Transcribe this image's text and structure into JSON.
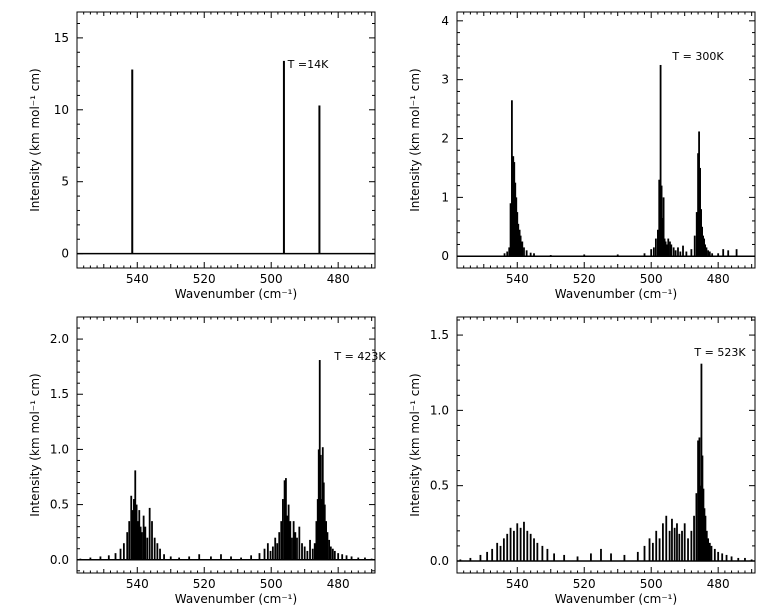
{
  "chart_data": [
    {
      "type": "bar",
      "panel": "top-left",
      "annotation": "T =14K",
      "xlabel": "Wavenumber (cm⁻¹)",
      "ylabel": "Intensity (km mol⁻¹ cm)",
      "xlim": [
        558,
        469
      ],
      "ylim": [
        -1.0,
        16.8
      ],
      "xticks": [
        540,
        520,
        500,
        480
      ],
      "yticks": [
        0,
        5,
        10,
        15
      ],
      "grid": false,
      "x": [
        541.5,
        496.2,
        485.6
      ],
      "values": [
        12.8,
        13.4,
        10.3
      ]
    },
    {
      "type": "bar",
      "panel": "top-right",
      "annotation": "T = 300K",
      "xlabel": "Wavenumber (cm⁻¹)",
      "ylabel": "Intensity (km mol⁻¹ cm)",
      "xlim": [
        558,
        469
      ],
      "ylim": [
        -0.2,
        4.15
      ],
      "xticks": [
        540,
        520,
        500,
        480
      ],
      "yticks": [
        0,
        1,
        2,
        3,
        4
      ],
      "grid": false,
      "x": [
        543.8,
        543.0,
        542.4,
        542.0,
        541.6,
        541.2,
        540.9,
        540.6,
        540.3,
        540.0,
        539.7,
        539.3,
        539.0,
        538.5,
        538.0,
        537.2,
        536.0,
        535.0,
        530.0,
        520.0,
        510.0,
        502.0,
        500.0,
        499.2,
        498.6,
        498.0,
        497.6,
        497.2,
        496.9,
        496.6,
        496.3,
        496.0,
        495.7,
        495.3,
        494.9,
        494.4,
        494.0,
        493.3,
        492.7,
        492.0,
        491.3,
        490.5,
        489.5,
        488.0,
        487.0,
        486.4,
        486.0,
        485.7,
        485.4,
        485.1,
        484.8,
        484.5,
        484.2,
        483.9,
        483.5,
        483.0,
        482.5,
        481.8,
        480.0,
        478.5,
        477.0,
        474.5
      ],
      "values": [
        0.05,
        0.08,
        0.15,
        0.9,
        2.65,
        1.7,
        1.6,
        1.25,
        1.0,
        0.75,
        0.55,
        0.45,
        0.35,
        0.25,
        0.15,
        0.1,
        0.06,
        0.05,
        0.02,
        0.03,
        0.03,
        0.05,
        0.12,
        0.15,
        0.3,
        0.45,
        1.3,
        3.25,
        1.2,
        0.65,
        1.0,
        0.3,
        0.25,
        0.2,
        0.3,
        0.25,
        0.2,
        0.15,
        0.1,
        0.15,
        0.08,
        0.18,
        0.08,
        0.12,
        0.35,
        0.75,
        1.75,
        2.12,
        1.5,
        0.8,
        0.5,
        0.35,
        0.3,
        0.2,
        0.15,
        0.1,
        0.08,
        0.05,
        0.05,
        0.12,
        0.1,
        0.12
      ]
    },
    {
      "type": "bar",
      "panel": "bottom-left",
      "annotation": "T = 423K",
      "xlabel": "Wavenumber (cm⁻¹)",
      "ylabel": "Intensity (km mol⁻¹ cm)",
      "xlim": [
        558,
        469
      ],
      "ylim": [
        -0.12,
        2.2
      ],
      "xticks": [
        540,
        520,
        500,
        480
      ],
      "yticks": [
        0.0,
        0.5,
        1.0,
        1.5,
        2.0
      ],
      "grid": false,
      "x": [
        557.0,
        554.0,
        551.0,
        548.5,
        546.5,
        545.0,
        544.0,
        543.0,
        542.4,
        541.8,
        541.4,
        541.0,
        540.6,
        540.2,
        539.8,
        539.4,
        539.0,
        538.6,
        538.1,
        537.6,
        537.0,
        536.3,
        535.6,
        534.8,
        534.0,
        533.2,
        532.0,
        530.0,
        527.5,
        524.5,
        521.5,
        518.0,
        515.0,
        512.0,
        509.0,
        506.0,
        503.5,
        502.0,
        501.0,
        500.2,
        499.5,
        498.8,
        498.2,
        497.6,
        497.0,
        496.5,
        496.0,
        495.6,
        495.2,
        494.8,
        494.3,
        493.8,
        493.3,
        492.8,
        492.3,
        491.6,
        490.8,
        490.0,
        489.2,
        488.4,
        487.6,
        487.0,
        486.5,
        486.1,
        485.8,
        485.5,
        485.2,
        484.9,
        484.6,
        484.3,
        484.0,
        483.6,
        483.2,
        482.7,
        482.2,
        481.6,
        481.0,
        480.0,
        478.8,
        477.5,
        476.0,
        474.0,
        472.0,
        470.0
      ],
      "values": [
        0.01,
        0.02,
        0.03,
        0.04,
        0.06,
        0.1,
        0.15,
        0.25,
        0.35,
        0.58,
        0.45,
        0.55,
        0.81,
        0.5,
        0.35,
        0.45,
        0.3,
        0.25,
        0.4,
        0.3,
        0.2,
        0.47,
        0.35,
        0.2,
        0.15,
        0.1,
        0.05,
        0.03,
        0.02,
        0.03,
        0.05,
        0.03,
        0.05,
        0.03,
        0.02,
        0.04,
        0.06,
        0.1,
        0.15,
        0.08,
        0.12,
        0.2,
        0.15,
        0.25,
        0.35,
        0.55,
        0.72,
        0.74,
        0.4,
        0.5,
        0.35,
        0.2,
        0.35,
        0.25,
        0.2,
        0.3,
        0.15,
        0.12,
        0.08,
        0.18,
        0.1,
        0.15,
        0.35,
        0.55,
        1.0,
        1.81,
        0.95,
        0.55,
        1.02,
        0.7,
        0.5,
        0.35,
        0.25,
        0.18,
        0.12,
        0.1,
        0.08,
        0.06,
        0.05,
        0.04,
        0.03,
        0.02,
        0.02,
        0.01
      ]
    },
    {
      "type": "bar",
      "panel": "bottom-right",
      "annotation": "T = 523K",
      "xlabel": "Wavenumber (cm⁻¹)",
      "ylabel": "Intensity (km mol⁻¹ cm)",
      "xlim": [
        558,
        469
      ],
      "ylim": [
        -0.08,
        1.62
      ],
      "xticks": [
        540,
        520,
        500,
        480
      ],
      "yticks": [
        0.0,
        0.5,
        1.0,
        1.5
      ],
      "grid": false,
      "x": [
        557.0,
        554.0,
        551.0,
        549.0,
        547.5,
        546.0,
        545.0,
        544.0,
        543.0,
        542.0,
        541.0,
        540.0,
        539.0,
        538.0,
        537.0,
        536.0,
        535.0,
        534.0,
        532.5,
        531.0,
        529.0,
        526.0,
        522.0,
        518.0,
        515.0,
        512.0,
        508.0,
        504.0,
        502.0,
        500.5,
        499.5,
        498.5,
        497.5,
        496.5,
        495.5,
        494.5,
        493.8,
        493.0,
        492.3,
        491.6,
        490.8,
        490.0,
        489.0,
        488.0,
        487.2,
        486.5,
        486.0,
        485.6,
        485.3,
        485.0,
        484.7,
        484.4,
        484.1,
        483.8,
        483.4,
        483.0,
        482.5,
        482.0,
        481.0,
        480.0,
        478.8,
        477.5,
        476.0,
        474.0,
        472.0,
        470.0
      ],
      "values": [
        0.01,
        0.02,
        0.04,
        0.06,
        0.08,
        0.12,
        0.1,
        0.15,
        0.18,
        0.22,
        0.2,
        0.25,
        0.22,
        0.26,
        0.2,
        0.18,
        0.15,
        0.12,
        0.1,
        0.08,
        0.05,
        0.04,
        0.03,
        0.05,
        0.08,
        0.05,
        0.04,
        0.06,
        0.1,
        0.15,
        0.12,
        0.2,
        0.15,
        0.25,
        0.3,
        0.2,
        0.28,
        0.22,
        0.25,
        0.18,
        0.2,
        0.25,
        0.15,
        0.2,
        0.3,
        0.45,
        0.8,
        0.82,
        0.5,
        1.31,
        0.7,
        0.48,
        0.35,
        0.3,
        0.2,
        0.15,
        0.12,
        0.1,
        0.08,
        0.06,
        0.05,
        0.04,
        0.03,
        0.02,
        0.02,
        0.01
      ]
    }
  ]
}
